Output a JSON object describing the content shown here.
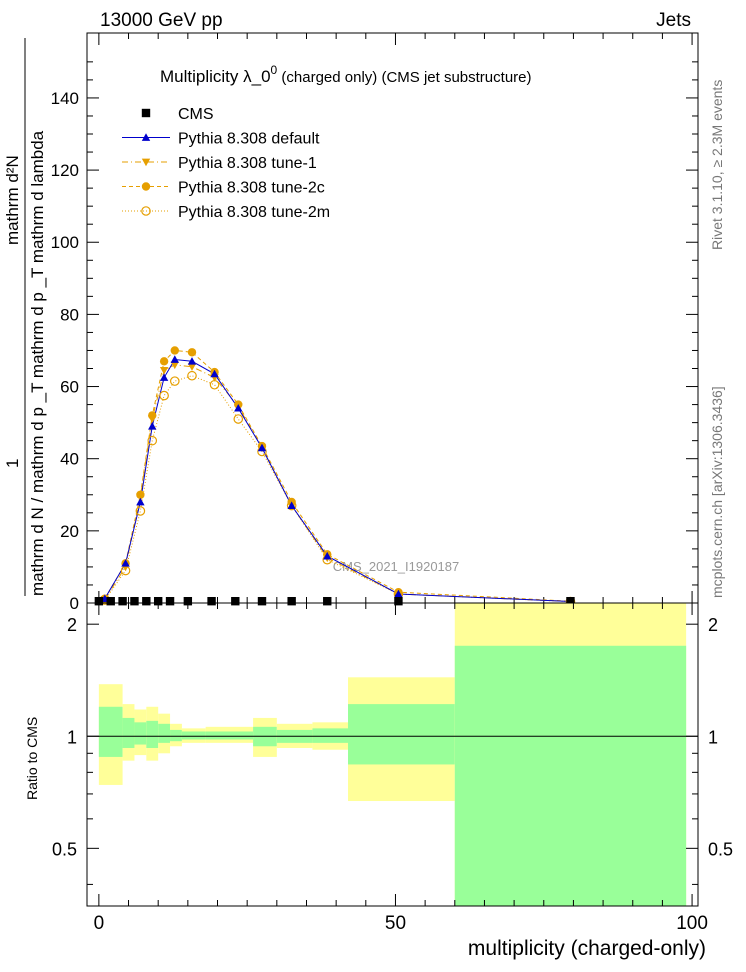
{
  "header": {
    "left": "13000 GeV pp",
    "right": "Jets"
  },
  "side_labels": {
    "rivet": "Rivet 3.1.10, ≥ 2.3M events",
    "mcplots": "mcplots.cern.ch [arXiv:1306.3436]"
  },
  "watermark": "CMS_2021_I1920187",
  "chart_data": [
    {
      "type": "line",
      "title_main": "Multiplicity  λ_0",
      "title_sup": "0",
      "title_rest": " (charged only) (CMS jet substructure)",
      "xlabel": "multiplicity (charged-only)",
      "ylabel_num": "1",
      "ylabel_den": "mathrm d N / mathrm d p _T mathrm d p _T mathrm d lambda",
      "ylabel_top": "mathrm d²N",
      "ylabel_top_den": "mathrm d p _T mathrm d lambda",
      "xlim": [
        -2,
        101
      ],
      "ylim": [
        0,
        158
      ],
      "xticks": [
        0,
        50,
        100
      ],
      "yticks": [
        0,
        20,
        40,
        60,
        80,
        100,
        120,
        140
      ],
      "grid": false,
      "legend_position": "top-left",
      "colors": {
        "CMS": "#000000",
        "default": "#0000cc",
        "tune": "#e69f00"
      },
      "series": [
        {
          "name": "CMS",
          "marker": "square",
          "x": [
            0,
            2,
            4,
            6,
            8,
            10,
            12,
            15,
            19,
            23,
            27.5,
            32.5,
            38.5,
            50.5,
            79.5
          ],
          "y": [
            0.5,
            0.5,
            0.5,
            0.5,
            0.5,
            0.5,
            0.5,
            0.5,
            0.5,
            0.5,
            0.5,
            0.5,
            0.5,
            0.5,
            0.5
          ]
        },
        {
          "name": "Pythia 8.308 default",
          "marker": "triangle-up",
          "x": [
            1,
            4.5,
            7,
            9,
            11,
            12.8,
            15.7,
            19.5,
            23.5,
            27.5,
            32.5,
            38.5,
            50.5,
            79.5
          ],
          "y": [
            1.2,
            11,
            28,
            49,
            62.5,
            67.5,
            67,
            63.5,
            54,
            43,
            27,
            13,
            2.5,
            0.4
          ]
        },
        {
          "name": "Pythia 8.308 tune-1",
          "marker": "triangle-down",
          "x": [
            1,
            4.5,
            7,
            9,
            11,
            12.8,
            15.7,
            19.5,
            23.5,
            27.5,
            32.5,
            38.5,
            50.5,
            79.5
          ],
          "y": [
            1,
            10,
            29.5,
            51,
            64.5,
            66,
            65.5,
            62.5,
            54.5,
            43,
            27,
            12.5,
            2.5,
            0.4
          ]
        },
        {
          "name": "Pythia 8.308 tune-2c",
          "marker": "circle",
          "x": [
            1,
            4.5,
            7,
            9,
            11,
            12.8,
            15.7,
            19.5,
            23.5,
            27.5,
            32.5,
            38.5,
            50.5,
            79.5
          ],
          "y": [
            1.2,
            11,
            30,
            52,
            67,
            70,
            69.5,
            64,
            55,
            43.5,
            28,
            13.5,
            3,
            0.5
          ]
        },
        {
          "name": "Pythia 8.308 tune-2m",
          "marker": "open-circle",
          "x": [
            1,
            4.5,
            7,
            9,
            11,
            12.8,
            15.7,
            19.5,
            23.5,
            27.5,
            32.5,
            38.5,
            50.5,
            79.5
          ],
          "y": [
            0.8,
            9,
            25.5,
            45,
            57.5,
            61.5,
            63,
            60.5,
            51,
            42,
            27,
            12,
            2.5,
            0.4
          ]
        }
      ]
    },
    {
      "type": "area",
      "ylabel": "Ratio to CMS",
      "ylim": [
        0.35,
        2.28
      ],
      "yticks": [
        0.5,
        1,
        2
      ],
      "reference_line": 1,
      "colors": {
        "outer_band": "#ffff99",
        "inner_band": "#99ff99"
      },
      "bins": [
        {
          "x0": 0,
          "x1": 4,
          "outer": [
            0.74,
            1.38
          ],
          "inner": [
            0.88,
            1.2
          ]
        },
        {
          "x0": 4,
          "x1": 6,
          "outer": [
            0.86,
            1.22
          ],
          "inner": [
            0.93,
            1.12
          ]
        },
        {
          "x0": 6,
          "x1": 8,
          "outer": [
            0.89,
            1.18
          ],
          "inner": [
            0.95,
            1.09
          ]
        },
        {
          "x0": 8,
          "x1": 10,
          "outer": [
            0.86,
            1.2
          ],
          "inner": [
            0.93,
            1.1
          ]
        },
        {
          "x0": 10,
          "x1": 12,
          "outer": [
            0.9,
            1.15
          ],
          "inner": [
            0.96,
            1.08
          ]
        },
        {
          "x0": 12,
          "x1": 14,
          "outer": [
            0.94,
            1.08
          ],
          "inner": [
            0.97,
            1.04
          ]
        },
        {
          "x0": 14,
          "x1": 18,
          "outer": [
            0.96,
            1.05
          ],
          "inner": [
            0.98,
            1.03
          ]
        },
        {
          "x0": 18,
          "x1": 26,
          "outer": [
            0.96,
            1.06
          ],
          "inner": [
            0.98,
            1.03
          ]
        },
        {
          "x0": 26,
          "x1": 30,
          "outer": [
            0.88,
            1.12
          ],
          "inner": [
            0.94,
            1.06
          ]
        },
        {
          "x0": 30,
          "x1": 36,
          "outer": [
            0.93,
            1.08
          ],
          "inner": [
            0.96,
            1.04
          ]
        },
        {
          "x0": 36,
          "x1": 42,
          "outer": [
            0.92,
            1.09
          ],
          "inner": [
            0.96,
            1.05
          ]
        },
        {
          "x0": 42,
          "x1": 60,
          "outer": [
            0.67,
            1.44
          ],
          "inner": [
            0.84,
            1.22
          ]
        },
        {
          "x0": 60,
          "x1": 99,
          "outer": [
            0.35,
            2.28
          ],
          "inner": [
            0.35,
            1.75
          ]
        }
      ]
    }
  ]
}
